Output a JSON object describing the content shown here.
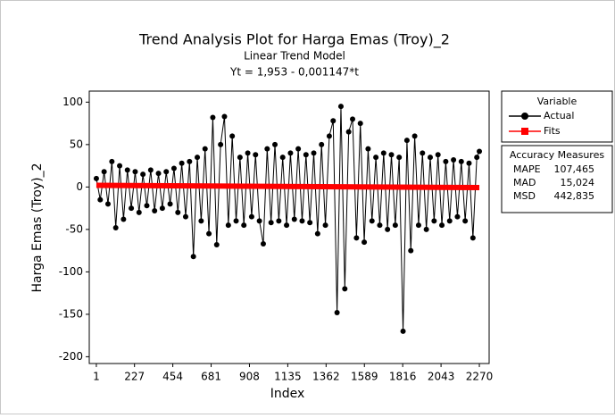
{
  "chart_data": {
    "type": "line",
    "title": "Trend Analysis Plot for Harga Emas (Troy)_2",
    "subtitle": "Linear Trend Model",
    "equation": "Yt = 1,953 - 0,001147*t",
    "x_label": "Index",
    "y_label": "Harga Emas (Troy)_2",
    "legend_title": "Variable",
    "series": [
      {
        "name": "Actual",
        "color": "#000000",
        "x": [
          1,
          24,
          47,
          70,
          93,
          116,
          139,
          162,
          185,
          208,
          231,
          254,
          277,
          300,
          323,
          346,
          369,
          392,
          415,
          438,
          461,
          484,
          507,
          530,
          553,
          576,
          599,
          622,
          645,
          668,
          691,
          714,
          737,
          760,
          783,
          806,
          829,
          852,
          875,
          898,
          921,
          944,
          967,
          990,
          1013,
          1036,
          1059,
          1082,
          1105,
          1128,
          1151,
          1174,
          1197,
          1220,
          1243,
          1266,
          1289,
          1312,
          1335,
          1358,
          1381,
          1404,
          1427,
          1450,
          1473,
          1496,
          1519,
          1542,
          1565,
          1588,
          1611,
          1634,
          1657,
          1680,
          1703,
          1726,
          1749,
          1772,
          1795,
          1818,
          1841,
          1864,
          1887,
          1910,
          1933,
          1956,
          1979,
          2002,
          2025,
          2048,
          2071,
          2094,
          2117,
          2140,
          2163,
          2186,
          2209,
          2232,
          2255,
          2270
        ],
        "values": [
          10,
          -15,
          18,
          -20,
          30,
          -48,
          25,
          -38,
          20,
          -25,
          18,
          -30,
          15,
          -22,
          20,
          -28,
          16,
          -25,
          18,
          -20,
          22,
          -30,
          28,
          -35,
          30,
          -82,
          35,
          -40,
          45,
          -55,
          82,
          -68,
          50,
          83,
          -45,
          60,
          -40,
          35,
          -45,
          40,
          -35,
          38,
          -40,
          -67,
          45,
          -42,
          50,
          -40,
          35,
          -45,
          40,
          -38,
          45,
          -40,
          38,
          -42,
          40,
          -55,
          50,
          -45,
          60,
          78,
          -148,
          95,
          -120,
          65,
          80,
          -60,
          75,
          -65,
          45,
          -40,
          35,
          -45,
          40,
          -50,
          38,
          -45,
          35,
          -170,
          55,
          -75,
          60,
          -45,
          40,
          -50,
          35,
          -40,
          38,
          -45,
          30,
          -40,
          32,
          -35,
          30,
          -40,
          28,
          -60,
          35,
          42
        ]
      },
      {
        "name": "Fits",
        "color": "#ff0000",
        "x": [
          1,
          2270
        ],
        "values": [
          1.952,
          -0.651
        ]
      }
    ],
    "accuracy": {
      "title": "Accuracy Measures",
      "rows": [
        [
          "MAPE",
          "107,465"
        ],
        [
          "MAD",
          "15,024"
        ],
        [
          "MSD",
          "442,835"
        ]
      ]
    },
    "xlim": [
      -41,
      2328
    ],
    "ylim": [
      -208,
      113
    ],
    "xticks": [
      1,
      227,
      454,
      681,
      908,
      1135,
      1362,
      1589,
      1816,
      2043,
      2270
    ],
    "yticks": [
      -200,
      -150,
      -100,
      -50,
      0,
      50,
      100
    ]
  }
}
